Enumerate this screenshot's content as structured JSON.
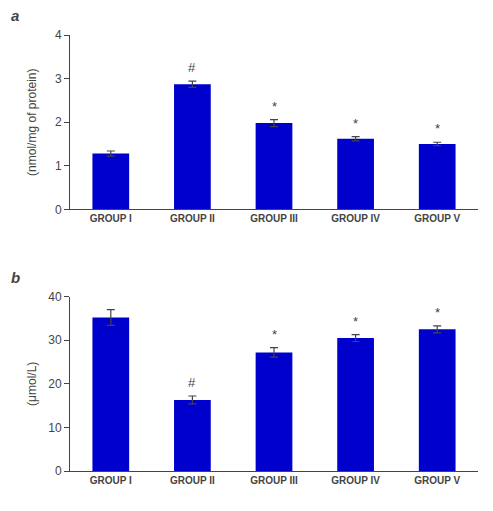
{
  "chart_data": [
    {
      "type": "bar",
      "title": "a",
      "categories": [
        "GROUP I",
        "GROUP II",
        "GROUP III",
        "GROUP IV",
        "GROUP V"
      ],
      "values": [
        1.28,
        2.87,
        1.98,
        1.62,
        1.5
      ],
      "errors": [
        0.06,
        0.07,
        0.08,
        0.05,
        0.04
      ],
      "annotations": [
        null,
        "#",
        "*",
        "*",
        "*"
      ],
      "ylabel": "(nmol/mg of protein)",
      "color": "#0000CC",
      "ylim": [
        0,
        4
      ],
      "yticks": [
        0,
        1,
        2,
        3,
        4
      ],
      "grid": false
    },
    {
      "type": "bar",
      "title": "b",
      "categories": [
        "GROUP I",
        "GROUP II",
        "GROUP III",
        "GROUP IV",
        "GROUP V"
      ],
      "values": [
        35.2,
        16.3,
        27.2,
        30.5,
        32.5
      ],
      "errors": [
        1.8,
        0.9,
        1.1,
        0.8,
        0.8
      ],
      "annotations": [
        null,
        "#",
        "*",
        "*",
        "*"
      ],
      "ylabel": "(μmol/L)",
      "color": "#0000CC",
      "ylim": [
        0,
        40
      ],
      "yticks": [
        0,
        10,
        20,
        30,
        40
      ],
      "grid": false
    }
  ]
}
